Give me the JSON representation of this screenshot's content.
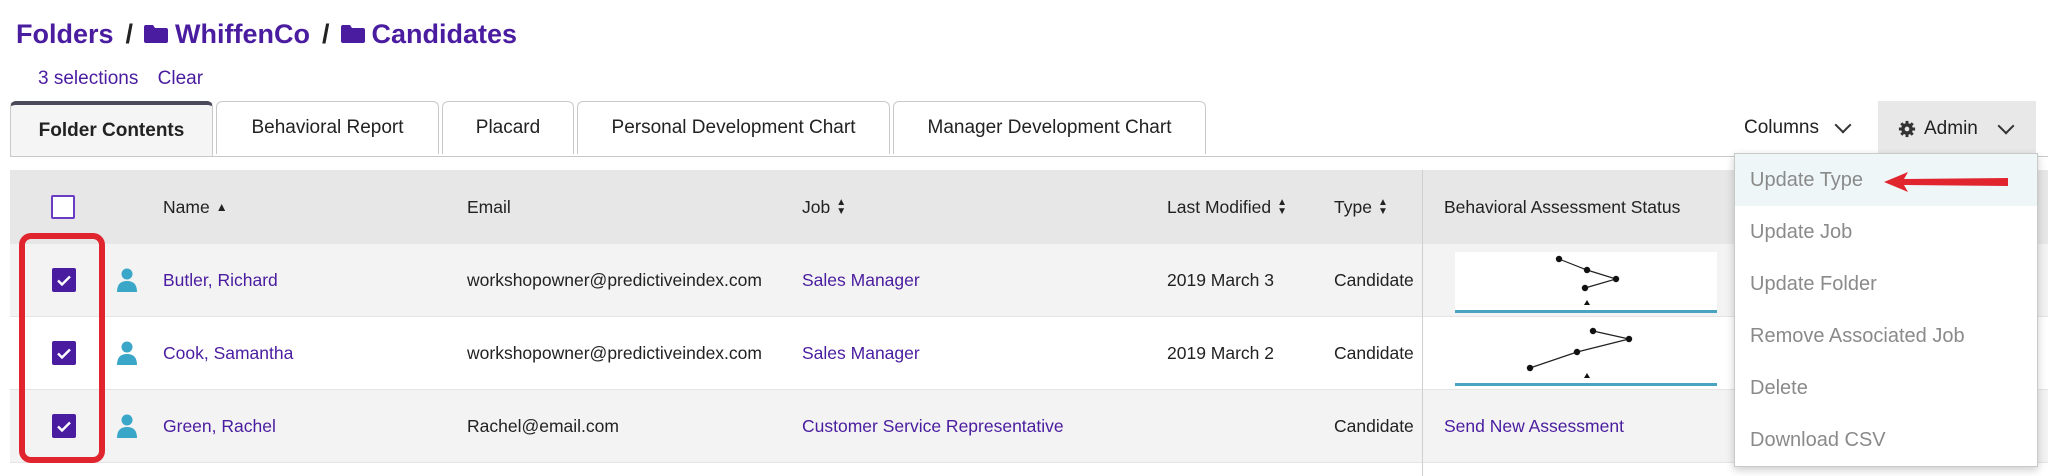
{
  "breadcrumb": {
    "root": "Folders",
    "folder1": "WhiffenCo",
    "folder2": "Candidates"
  },
  "selection": {
    "count_label": "3 selections",
    "clear_label": "Clear"
  },
  "tabs": [
    {
      "label": "Folder Contents"
    },
    {
      "label": "Behavioral Report"
    },
    {
      "label": "Placard"
    },
    {
      "label": "Personal Development Chart"
    },
    {
      "label": "Manager Development Chart"
    }
  ],
  "toolbar": {
    "columns_label": "Columns",
    "admin_label": "Admin"
  },
  "table": {
    "headers": {
      "name": "Name",
      "email": "Email",
      "job": "Job",
      "last_modified": "Last Modified",
      "type": "Type",
      "status": "Behavioral Assessment Status"
    },
    "rows": [
      {
        "name": "Butler, Richard",
        "email": "workshopowner@predictiveindex.com",
        "job": "Sales Manager",
        "modified": "2019 March 3",
        "type": "Candidate",
        "status": ""
      },
      {
        "name": "Cook, Samantha",
        "email": "workshopowner@predictiveindex.com",
        "job": "Sales Manager",
        "modified": "2019 March 2",
        "type": "Candidate",
        "status": ""
      },
      {
        "name": "Green, Rachel",
        "email": "Rachel@email.com",
        "job": "Customer Service Representative",
        "modified": "",
        "type": "Candidate",
        "status": "Send New Assessment"
      }
    ]
  },
  "admin_menu": {
    "items": [
      "Update Type",
      "Update Job",
      "Update Folder",
      "Remove Associated Job",
      "Delete",
      "Download CSV"
    ]
  },
  "colors": {
    "accent": "#4a1ca0",
    "highlight": "#e0252f",
    "person_icon": "#3aa6c8"
  },
  "icons": [
    "folder-icon",
    "person-icon",
    "gear-icon",
    "chevron-down-icon",
    "sort-icon",
    "check-icon",
    "red-arrow"
  ]
}
